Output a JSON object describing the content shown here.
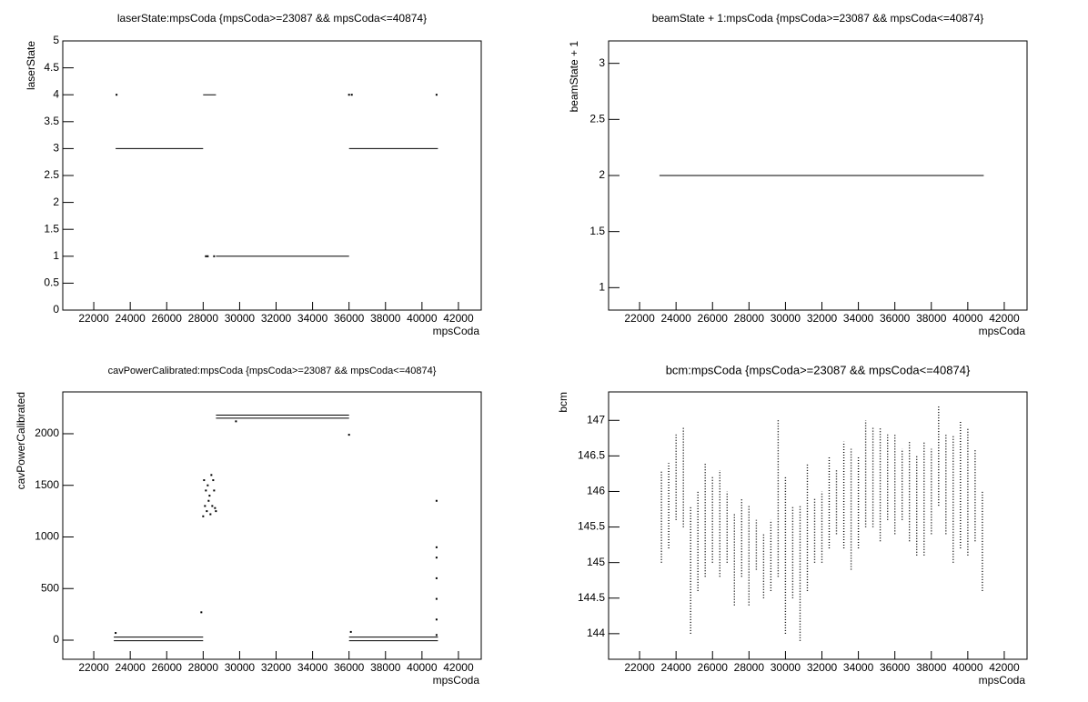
{
  "chart_data": [
    {
      "type": "scatter",
      "title": "laserState:mpsCoda {mpsCoda>=23087 && mpsCoda<=40874}",
      "x_label": "mpsCoda",
      "y_label": "laserState",
      "xlim": [
        20300,
        43250
      ],
      "xticks": [
        22000,
        24000,
        26000,
        28000,
        30000,
        32000,
        34000,
        36000,
        38000,
        40000,
        42000
      ],
      "ylim": [
        0,
        5
      ],
      "yticks": [
        0,
        0.5,
        1,
        1.5,
        2,
        2.5,
        3,
        3.5,
        4,
        4.5,
        5
      ],
      "color": "#000000",
      "line_x": [
        23200,
        28000,
        null,
        28000,
        28700,
        null,
        28700,
        36000,
        null,
        36000,
        40874
      ],
      "line_values": [
        3,
        3,
        null,
        4,
        4,
        null,
        1,
        1,
        null,
        3,
        3
      ],
      "x": [
        23250,
        28150,
        28250,
        28600,
        36000,
        36150,
        40800
      ],
      "values": [
        4,
        1,
        1,
        1,
        4,
        4,
        4
      ]
    },
    {
      "type": "scatter",
      "title": "beamState + 1:mpsCoda {mpsCoda>=23087 && mpsCoda<=40874}",
      "x_label": "mpsCoda",
      "y_label": "beamState + 1",
      "xlim": [
        20300,
        43250
      ],
      "xticks": [
        22000,
        24000,
        26000,
        28000,
        30000,
        32000,
        34000,
        36000,
        38000,
        40000,
        42000
      ],
      "ylim": [
        0.8,
        3.2
      ],
      "yticks": [
        1,
        1.5,
        2,
        2.5,
        3
      ],
      "color": "#000000",
      "line_x": [
        23087,
        40874
      ],
      "line_values": [
        2,
        2
      ],
      "x": [],
      "values": []
    },
    {
      "type": "scatter",
      "title": "cavPowerCalibrated:mpsCoda {mpsCoda>=23087 && mpsCoda<=40874}",
      "x_label": "mpsCoda",
      "y_label": "cavPowerCalibrated",
      "xlim": [
        20300,
        43250
      ],
      "xticks": [
        22000,
        24000,
        26000,
        28000,
        30000,
        32000,
        34000,
        36000,
        38000,
        40000,
        42000
      ],
      "ylim": [
        -185,
        2405
      ],
      "yticks": [
        0,
        500,
        1000,
        1500,
        2000
      ],
      "color": "#000000",
      "line_x": [
        23100,
        28000,
        null,
        23100,
        28000,
        null,
        28700,
        36000,
        null,
        28700,
        36000,
        null,
        36000,
        40874,
        null,
        36000,
        40874
      ],
      "line_values": [
        30,
        30,
        null,
        -5,
        -5,
        null,
        2180,
        2180,
        null,
        2150,
        2150,
        null,
        30,
        30,
        null,
        -5,
        -5
      ],
      "x": [
        23200,
        27900,
        28000,
        28050,
        28100,
        28150,
        28200,
        28250,
        28300,
        28350,
        28400,
        28450,
        28500,
        28550,
        28600,
        28650,
        28700,
        29800,
        36000,
        36100,
        40800,
        40800,
        40800,
        40800,
        40800,
        40800,
        40800
      ],
      "values": [
        70,
        270,
        1200,
        1550,
        1300,
        1450,
        1250,
        1500,
        1350,
        1400,
        1220,
        1600,
        1300,
        1550,
        1450,
        1280,
        1250,
        2120,
        1990,
        80,
        50,
        200,
        400,
        600,
        800,
        900,
        1350
      ]
    },
    {
      "type": "scatter",
      "title": "bcm:mpsCoda {mpsCoda>=23087 && mpsCoda<=40874}",
      "x_label": "mpsCoda",
      "y_label": "bcm",
      "xlim": [
        20300,
        43250
      ],
      "xticks": [
        22000,
        24000,
        26000,
        28000,
        30000,
        32000,
        34000,
        36000,
        38000,
        40000,
        42000
      ],
      "ylim": [
        143.64,
        147.4
      ],
      "yticks": [
        144,
        144.5,
        145,
        145.5,
        146,
        146.5,
        147
      ],
      "color": "#000000",
      "dotted": true,
      "line_x": [
        23200,
        23200,
        null,
        23600,
        23600,
        null,
        24000,
        24000,
        null,
        24400,
        24400,
        null,
        24800,
        24800,
        null,
        25200,
        25200,
        null,
        25600,
        25600,
        null,
        26000,
        26000,
        null,
        26400,
        26400,
        null,
        26800,
        26800,
        null,
        27200,
        27200,
        null,
        27600,
        27600,
        null,
        28000,
        28000,
        null,
        28400,
        28400,
        null,
        28800,
        28800,
        null,
        29200,
        29200,
        null,
        29600,
        29600,
        null,
        30000,
        30000,
        null,
        30400,
        30400,
        null,
        30800,
        30800,
        null,
        31200,
        31200,
        null,
        31600,
        31600,
        null,
        32000,
        32000,
        null,
        32400,
        32400,
        null,
        32800,
        32800,
        null,
        33200,
        33200,
        null,
        33600,
        33600,
        null,
        34000,
        34000,
        null,
        34400,
        34400,
        null,
        34800,
        34800,
        null,
        35200,
        35200,
        null,
        35600,
        35600,
        null,
        36000,
        36000,
        null,
        36400,
        36400,
        null,
        36800,
        36800,
        null,
        37200,
        37200,
        null,
        37600,
        37600,
        null,
        38000,
        38000,
        null,
        38400,
        38400,
        null,
        38800,
        38800,
        null,
        39200,
        39200,
        null,
        39600,
        39600,
        null,
        40000,
        40000,
        null,
        40400,
        40400,
        null,
        40800,
        40800
      ],
      "line_values": [
        145.0,
        146.3,
        null,
        145.2,
        146.4,
        null,
        145.6,
        146.8,
        null,
        145.5,
        146.9,
        null,
        144.0,
        145.8,
        null,
        144.6,
        146.0,
        null,
        144.8,
        146.4,
        null,
        145.0,
        146.2,
        null,
        144.8,
        146.3,
        null,
        145.0,
        146.0,
        null,
        144.4,
        145.7,
        null,
        144.8,
        145.9,
        null,
        144.4,
        145.8,
        null,
        144.9,
        145.6,
        null,
        144.5,
        145.4,
        null,
        144.6,
        145.6,
        null,
        144.8,
        147.0,
        null,
        144.0,
        146.2,
        null,
        144.5,
        145.8,
        null,
        143.9,
        145.8,
        null,
        144.6,
        146.4,
        null,
        145.0,
        145.9,
        null,
        145.0,
        146.0,
        null,
        145.2,
        146.5,
        null,
        145.4,
        146.3,
        null,
        145.2,
        146.7,
        null,
        144.9,
        146.6,
        null,
        145.2,
        146.5,
        null,
        145.5,
        147.0,
        null,
        145.5,
        146.9,
        null,
        145.3,
        146.9,
        null,
        145.6,
        146.8,
        null,
        145.4,
        146.8,
        null,
        145.6,
        146.6,
        null,
        145.3,
        146.7,
        null,
        145.1,
        146.5,
        null,
        145.1,
        146.7,
        null,
        145.4,
        146.6,
        null,
        145.8,
        147.2,
        null,
        145.4,
        146.8,
        null,
        145.0,
        146.8,
        null,
        145.2,
        147.0,
        null,
        145.1,
        146.9,
        null,
        145.3,
        146.6,
        null,
        144.6,
        146.0
      ],
      "x": [],
      "values": []
    }
  ]
}
